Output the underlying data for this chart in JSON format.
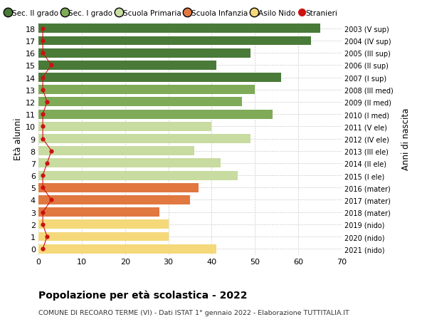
{
  "ages": [
    0,
    1,
    2,
    3,
    4,
    5,
    6,
    7,
    8,
    9,
    10,
    11,
    12,
    13,
    14,
    15,
    16,
    17,
    18
  ],
  "bar_values": [
    41,
    30,
    30,
    28,
    35,
    37,
    46,
    42,
    36,
    49,
    40,
    54,
    47,
    50,
    56,
    41,
    49,
    63,
    65
  ],
  "stranieri": [
    1,
    2,
    1,
    1,
    3,
    1,
    1,
    2,
    3,
    1,
    1,
    1,
    2,
    1,
    1,
    3,
    1,
    1,
    1
  ],
  "bar_colors": [
    "#f5d87a",
    "#f5d87a",
    "#f5d87a",
    "#e07840",
    "#e07840",
    "#e07840",
    "#c8dba0",
    "#c8dba0",
    "#c8dba0",
    "#c8dba0",
    "#c8dba0",
    "#7faa58",
    "#7faa58",
    "#7faa58",
    "#4a7a38",
    "#4a7a38",
    "#4a7a38",
    "#4a7a38",
    "#4a7a38"
  ],
  "right_labels": [
    "2021 (nido)",
    "2020 (nido)",
    "2019 (nido)",
    "2018 (mater)",
    "2017 (mater)",
    "2016 (mater)",
    "2015 (I ele)",
    "2014 (II ele)",
    "2013 (III ele)",
    "2012 (IV ele)",
    "2011 (V ele)",
    "2010 (I med)",
    "2009 (II med)",
    "2008 (III med)",
    "2007 (I sup)",
    "2006 (II sup)",
    "2005 (III sup)",
    "2004 (IV sup)",
    "2003 (V sup)"
  ],
  "legend_labels": [
    "Sec. II grado",
    "Sec. I grado",
    "Scuola Primaria",
    "Scuola Infanzia",
    "Asilo Nido",
    "Stranieri"
  ],
  "legend_colors": [
    "#4a7a38",
    "#7faa58",
    "#c8dba0",
    "#e07840",
    "#f5d87a",
    "#cc1111"
  ],
  "ylabel": "Età alunni",
  "right_ylabel": "Anni di nascita",
  "title": "Popolazione per età scolastica - 2022",
  "subtitle": "COMUNE DI RECOARO TERME (VI) - Dati ISTAT 1° gennaio 2022 - Elaborazione TUTTITALIA.IT",
  "xlim": [
    0,
    70
  ],
  "xticks": [
    0,
    10,
    20,
    30,
    40,
    50,
    60,
    70
  ],
  "bg_color": "#ffffff",
  "plot_bg_color": "#ffffff"
}
